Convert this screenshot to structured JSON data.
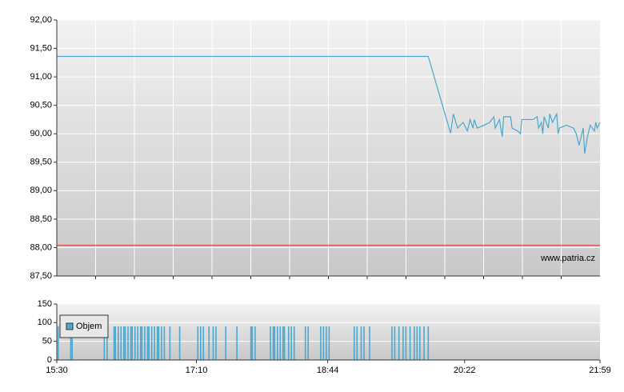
{
  "chart_data": [
    {
      "type": "line",
      "color": "#4aa8d0",
      "annotation": "www.patria.cz",
      "ref_value": 88.04,
      "ref_color": "#cc3333",
      "xlim": [
        930,
        1319
      ],
      "ylim": [
        87.5,
        92
      ],
      "yticks": [
        {
          "value": 87.5,
          "label": "87,50"
        },
        {
          "value": 88,
          "label": "88,00"
        },
        {
          "value": 88.5,
          "label": "88,50"
        },
        {
          "value": 89,
          "label": "89,00"
        },
        {
          "value": 89.5,
          "label": "89,50"
        },
        {
          "value": 90,
          "label": "90,00"
        },
        {
          "value": 90.5,
          "label": "90,50"
        },
        {
          "value": 91,
          "label": "91,00"
        },
        {
          "value": 91.5,
          "label": "91,50"
        },
        {
          "value": 92,
          "label": "92,00"
        }
      ],
      "x": [
        930,
        1196,
        1212,
        1214,
        1217,
        1221,
        1224,
        1226,
        1228,
        1229,
        1231,
        1236,
        1240,
        1243,
        1244,
        1247,
        1249,
        1250,
        1255,
        1256,
        1260,
        1262,
        1263,
        1271,
        1274,
        1275,
        1277,
        1278,
        1279,
        1282,
        1283,
        1285,
        1288,
        1289,
        1290,
        1295,
        1300,
        1302,
        1304,
        1307,
        1308,
        1310,
        1312,
        1315,
        1316,
        1317,
        1319
      ],
      "values": [
        91.36,
        91.36,
        90.01,
        90.35,
        90.1,
        90.2,
        90.05,
        90.25,
        90.1,
        90.25,
        90.1,
        90.15,
        90.2,
        90.3,
        90.1,
        90.25,
        89.95,
        90.3,
        90.3,
        90.1,
        90.05,
        90.0,
        90.25,
        90.25,
        90.3,
        90.1,
        90.2,
        90.0,
        90.3,
        90.1,
        90.35,
        90.2,
        90.35,
        90.0,
        90.1,
        90.15,
        90.1,
        90.0,
        89.8,
        90.1,
        89.65,
        89.95,
        90.15,
        90.05,
        90.2,
        90.1,
        90.2
      ]
    },
    {
      "type": "bar",
      "xlim": [
        930,
        1319
      ],
      "xticks": [
        {
          "value": 930,
          "label": "15:30"
        },
        {
          "value": 1030,
          "label": "17:10"
        },
        {
          "value": 1124,
          "label": "18:44"
        },
        {
          "value": 1222,
          "label": "20:22"
        },
        {
          "value": 1319,
          "label": "21:59"
        }
      ],
      "ylim": [
        0,
        150
      ],
      "yticks": [
        0,
        50,
        100,
        150
      ],
      "x": [
        931,
        940,
        941,
        964,
        966,
        971,
        972,
        974,
        976,
        978,
        979,
        981,
        983,
        984,
        986,
        988,
        990,
        991,
        993,
        995,
        996,
        998,
        1000,
        1002,
        1003,
        1005,
        1007,
        1011,
        1018,
        1031,
        1033,
        1035,
        1039,
        1042,
        1044,
        1051,
        1059,
        1069,
        1070,
        1072,
        1083,
        1085,
        1086,
        1088,
        1090,
        1092,
        1093,
        1096,
        1098,
        1100,
        1108,
        1110,
        1119,
        1121,
        1123,
        1125,
        1143,
        1145,
        1148,
        1150,
        1154,
        1170,
        1172,
        1175,
        1178,
        1180,
        1183,
        1186,
        1188,
        1190,
        1193,
        1196
      ],
      "series": [
        {
          "name": "Objem",
          "color": "#4aa8d0",
          "values": [
            90,
            90,
            90,
            90,
            90,
            90,
            90,
            90,
            90,
            90,
            90,
            90,
            90,
            90,
            90,
            90,
            90,
            90,
            90,
            90,
            90,
            90,
            90,
            90,
            90,
            90,
            90,
            90,
            90,
            90,
            90,
            90,
            90,
            90,
            90,
            90,
            90,
            90,
            90,
            90,
            90,
            90,
            90,
            90,
            90,
            90,
            90,
            90,
            90,
            90,
            90,
            90,
            90,
            90,
            90,
            90,
            90,
            90,
            90,
            90,
            90,
            90,
            90,
            90,
            90,
            90,
            90,
            90,
            90,
            90,
            90,
            90
          ]
        }
      ]
    }
  ]
}
